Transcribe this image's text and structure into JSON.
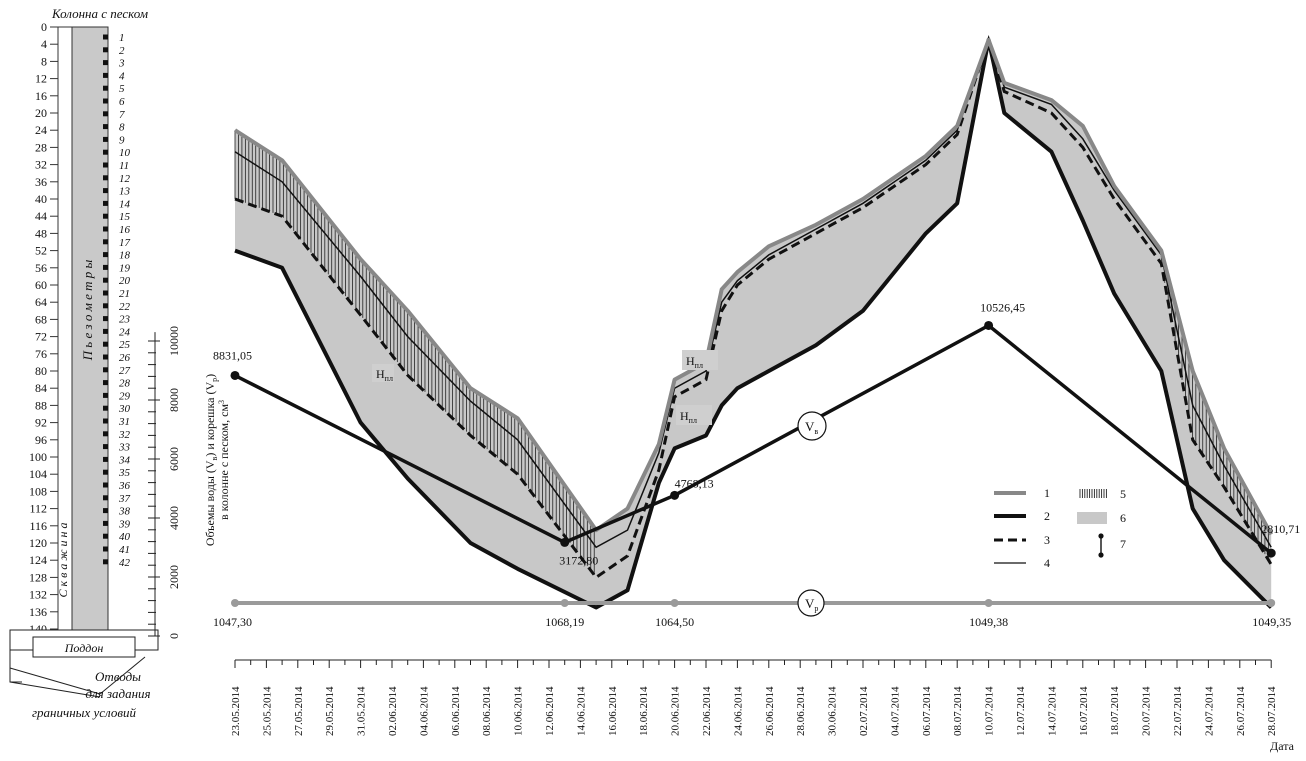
{
  "column": {
    "title": "Колонна с песком",
    "depth_ticks": [
      0,
      4,
      8,
      12,
      16,
      20,
      24,
      28,
      32,
      36,
      40,
      44,
      48,
      52,
      56,
      60,
      64,
      68,
      72,
      76,
      80,
      84,
      88,
      92,
      96,
      100,
      104,
      108,
      112,
      116,
      120,
      124,
      128,
      132,
      136,
      140
    ],
    "port_numbers": [
      "1",
      "2",
      "3",
      "4",
      "5",
      "6",
      "7",
      "8",
      "9",
      "10",
      "11",
      "12",
      "13",
      "14",
      "15",
      "16",
      "17",
      "18",
      "19",
      "20",
      "21",
      "22",
      "23",
      "24",
      "25",
      "26",
      "27",
      "28",
      "29",
      "30",
      "31",
      "32",
      "33",
      "34",
      "35",
      "36",
      "37",
      "38",
      "39",
      "40",
      "41",
      "42"
    ],
    "piezometer_label": "П ь е з о м е т р ы",
    "well_label": "С к в а ж и н а",
    "tray_label": "Поддон",
    "outlets_label_lines": [
      "Отводы",
      "для задания",
      "граничных условий"
    ]
  },
  "chart_data": {
    "type": "line",
    "ylabel_lines": [
      "Объемы воды (V",
      "в",
      ") и корешка (V",
      "р",
      ")",
      "в колонне с песком, см"
    ],
    "ylabel_sup": "3",
    "yticks": [
      0,
      2000,
      4000,
      6000,
      8000,
      10000
    ],
    "ylim": [
      0,
      10400
    ],
    "xlabel": "Дата",
    "x_dates": [
      "23.05.2014",
      "25.05.2014",
      "27.05.2014",
      "29.05.2014",
      "31.05.2014",
      "02.06.2014",
      "04.06.2014",
      "06.06.2014",
      "08.06.2014",
      "10.06.2014",
      "12.06.2014",
      "14.06.2014",
      "16.06.2014",
      "18.06.2014",
      "20.06.2014",
      "22.06.2014",
      "24.06.2014",
      "26.06.2014",
      "28.06.2014",
      "30.06.2014",
      "02.07.2014",
      "04.07.2014",
      "06.07.2014",
      "08.07.2014",
      "10.07.2014",
      "12.07.2014",
      "14.07.2014",
      "16.07.2014",
      "18.07.2014",
      "20.07.2014",
      "22.07.2014",
      "24.07.2014",
      "26.07.2014",
      "28.07.2014"
    ],
    "water_volume": {
      "symbol_main": "V",
      "symbol_sub": "в",
      "points": [
        {
          "day": 0,
          "value": 8831.05,
          "label": "8831,05"
        },
        {
          "day": 21,
          "value": 3172.8,
          "label": "3172,80"
        },
        {
          "day": 28,
          "value": 4768.13,
          "label": "4768,13"
        },
        {
          "day": 48,
          "value": 10526.45,
          "label": "10526,45"
        },
        {
          "day": 66,
          "value": 2810.71,
          "label": "2810,71"
        }
      ]
    },
    "root_volume": {
      "symbol_main": "V",
      "symbol_sub": "р",
      "points": [
        {
          "day": 0,
          "value": 1047.3,
          "label": "1047,30"
        },
        {
          "day": 21,
          "value": 1068.19,
          "label": "1068,19"
        },
        {
          "day": 28,
          "value": 1064.5,
          "label": "1064,50"
        },
        {
          "day": 48,
          "value": 1049.38,
          "label": "1049,38"
        },
        {
          "day": 66,
          "value": 1049.35,
          "label": "1049,35"
        }
      ]
    },
    "level_series_depth_cm": {
      "days": [
        0,
        3,
        8,
        11,
        15,
        18,
        23,
        25,
        27,
        28,
        30,
        31,
        32,
        34,
        37,
        40,
        44,
        46,
        48,
        49,
        52,
        54,
        56,
        59,
        61,
        63,
        66
      ],
      "curve1_top": [
        24,
        31,
        54,
        66,
        84,
        91,
        117,
        112,
        97,
        82,
        78,
        61,
        57,
        51,
        46,
        40,
        30,
        23,
        3,
        13,
        17,
        23,
        37,
        52,
        80,
        98,
        118
      ],
      "curve2_bottom": [
        52,
        56,
        92,
        105,
        120,
        126,
        135,
        131,
        106,
        98,
        95,
        88,
        84,
        80,
        74,
        66,
        48,
        41,
        3,
        20,
        29,
        45,
        62,
        80,
        112,
        124,
        135
      ],
      "curve3_dashed": [
        40,
        44,
        67,
        81,
        95,
        104,
        128,
        123,
        103,
        86,
        82,
        66,
        60,
        54,
        48,
        42,
        32,
        25,
        3,
        15,
        20,
        28,
        40,
        55,
        96,
        107,
        125
      ],
      "curve4_thin": [
        29,
        36,
        58,
        72,
        87,
        96,
        121,
        117,
        99,
        84,
        80,
        64,
        59,
        53,
        47,
        41,
        31,
        24,
        3,
        14,
        18,
        26,
        38,
        53,
        88,
        102,
        121
      ]
    },
    "area_labels": [
      {
        "main": "Н",
        "sub": "пл"
      },
      {
        "main": "Н",
        "sub": "пл"
      },
      {
        "main": "Н",
        "sub": "пл"
      }
    ],
    "legend": [
      "1",
      "2",
      "3",
      "4",
      "5",
      "6",
      "7"
    ],
    "colors": {
      "curve1": "#888888",
      "curve2": "#111111",
      "fill_gray": "#c8c8c8",
      "root_line": "#9a9a9a"
    }
  }
}
